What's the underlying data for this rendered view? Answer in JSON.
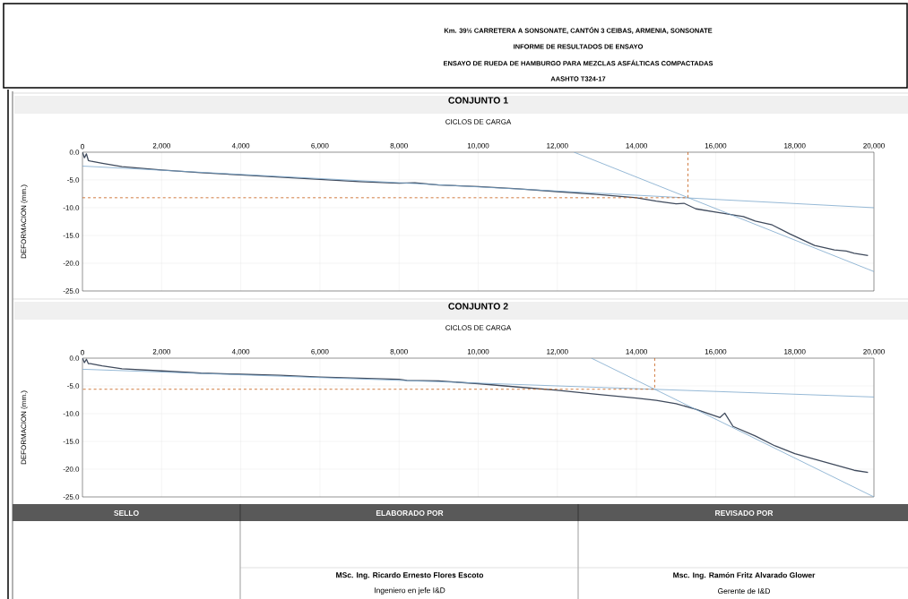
{
  "chart_data": [
    {
      "type": "line",
      "title": "CONJUNTO 1",
      "xlabel": "CICLOS DE CARGA",
      "ylabel": "DEFORMACION (mm.)",
      "annotations": [
        "Km. 39½ CARRETERA A SONSONATE, CANTÓN 3 CEIBAS, ARMENIA, SONSONATE",
        "INFORME DE RESULTADOS DE ENSAYO",
        "ENSAYO DE RUEDA DE HAMBURGO PARA MEZCLAS ASFÁLTICAS COMPACTADAS",
        "AASHTO T324-17"
      ],
      "xlim": [
        0,
        20000
      ],
      "ylim": [
        -25,
        0
      ],
      "grid": true,
      "xticks": [
        0,
        {
          "value": 2000,
          "label": "2,000"
        },
        {
          "value": 4000,
          "label": "4,000"
        },
        {
          "value": 6000,
          "label": "6,000"
        },
        {
          "value": 8000,
          "label": "8,000"
        },
        {
          "value": 10000,
          "label": "10,000"
        },
        {
          "value": 12000,
          "label": "12,000"
        },
        {
          "value": 14000,
          "label": "14,000"
        },
        {
          "value": 16000,
          "label": "16,000"
        },
        {
          "value": 18000,
          "label": "18,000"
        },
        {
          "value": 20000,
          "label": "20,000"
        }
      ],
      "yticks": [
        {
          "value": 0,
          "label": "0.0"
        },
        {
          "value": -5,
          "label": "-5.0"
        },
        {
          "value": -10,
          "label": "-10.0"
        },
        {
          "value": -15,
          "label": "-15.0"
        },
        {
          "value": -20,
          "label": "-20.0"
        },
        {
          "value": -25,
          "label": "-25.0"
        }
      ],
      "series": [
        {
          "color": "#3f4a5c",
          "x": [
            0,
            50,
            100,
            150,
            200,
            500,
            1000,
            2000,
            3000,
            4000,
            5000,
            6000,
            7000,
            8000,
            8400,
            9000,
            10000,
            11000,
            12000,
            13000,
            14000,
            14500,
            15000,
            15200,
            15500,
            16000,
            16700,
            17000,
            17430,
            17870,
            18500,
            19000,
            19300,
            19500,
            19850
          ],
          "values": [
            0,
            -1.0,
            -0.3,
            -1.5,
            -1.6,
            -2.0,
            -2.6,
            -3.2,
            -3.7,
            -4.1,
            -4.5,
            -4.9,
            -5.3,
            -5.6,
            -5.5,
            -5.9,
            -6.2,
            -6.6,
            -7.1,
            -7.6,
            -8.2,
            -8.8,
            -9.3,
            -9.2,
            -10.2,
            -10.8,
            -11.6,
            -12.4,
            -13.1,
            -14.7,
            -16.8,
            -17.6,
            -17.8,
            -18.2,
            -18.6
          ]
        },
        {
          "color": "#7ba7cc",
          "x": [
            0,
            20000
          ],
          "values": [
            -2.5,
            -10.0
          ]
        },
        {
          "color": "#7ba7cc",
          "x": [
            12420,
            20000
          ],
          "values": [
            0,
            -21.5
          ]
        },
        {
          "color": "#c55a11",
          "line_style": "dashed",
          "x": [
            15300,
            15300,
            0
          ],
          "values": [
            0,
            -8.2,
            -8.2
          ]
        }
      ]
    },
    {
      "type": "line",
      "title": "CONJUNTO 2",
      "xlabel": "CICLOS DE CARGA",
      "ylabel": "DEFORMACION (mm.)",
      "annotations": [
        "SELLO",
        "ELABORADO POR",
        "REVISADO POR",
        "MSc. Ing. Ricardo Ernesto Flores Escoto",
        "Ingeniero en jefe I&D",
        "Msc. Ing. Ramón Fritz Alvarado Glower",
        "Gerente de I&D"
      ],
      "xlim": [
        0,
        20000
      ],
      "ylim": [
        -25,
        0
      ],
      "grid": true,
      "xticks": [
        0,
        {
          "value": 2000,
          "label": "2,000"
        },
        {
          "value": 4000,
          "label": "4,000"
        },
        {
          "value": 6000,
          "label": "6,000"
        },
        {
          "value": 8000,
          "label": "8,000"
        },
        {
          "value": 10000,
          "label": "10,000"
        },
        {
          "value": 12000,
          "label": "12,000"
        },
        {
          "value": 14000,
          "label": "14,000"
        },
        {
          "value": 16000,
          "label": "16,000"
        },
        {
          "value": 18000,
          "label": "18,000"
        },
        {
          "value": 20000,
          "label": "20,000"
        }
      ],
      "yticks": [
        {
          "value": 0,
          "label": "0.0"
        },
        {
          "value": -5,
          "label": "-5.0"
        },
        {
          "value": -10,
          "label": "-10.0"
        },
        {
          "value": -15,
          "label": "-15.0"
        },
        {
          "value": -20,
          "label": "-20.0"
        },
        {
          "value": -25,
          "label": "-25.0"
        }
      ],
      "series": [
        {
          "color": "#3f4a5c",
          "x": [
            0,
            50,
            100,
            150,
            200,
            500,
            1000,
            2000,
            3000,
            3500,
            4000,
            5000,
            6000,
            7000,
            8000,
            8200,
            9000,
            10000,
            11000,
            12000,
            13000,
            14000,
            14500,
            15000,
            15500,
            16110,
            16230,
            16440,
            17000,
            17500,
            18000,
            18500,
            19000,
            19500,
            19850
          ],
          "values": [
            0,
            -0.8,
            -0.2,
            -1.0,
            -1.0,
            -1.4,
            -1.9,
            -2.3,
            -2.7,
            -2.8,
            -2.9,
            -3.1,
            -3.4,
            -3.6,
            -3.8,
            -4.0,
            -4.1,
            -4.6,
            -5.2,
            -5.8,
            -6.5,
            -7.2,
            -7.6,
            -8.2,
            -9.2,
            -10.7,
            -9.9,
            -12.3,
            -14.0,
            -15.8,
            -17.2,
            -18.2,
            -19.2,
            -20.2,
            -20.6
          ]
        },
        {
          "color": "#7ba7cc",
          "x": [
            0,
            20000
          ],
          "values": [
            -2.0,
            -7.0
          ]
        },
        {
          "color": "#7ba7cc",
          "x": [
            12860,
            20000
          ],
          "values": [
            0,
            -25
          ]
        },
        {
          "color": "#c55a11",
          "line_style": "dashed",
          "x": [
            14460,
            14460,
            0
          ],
          "values": [
            0,
            -5.6,
            -5.6
          ]
        }
      ]
    }
  ]
}
